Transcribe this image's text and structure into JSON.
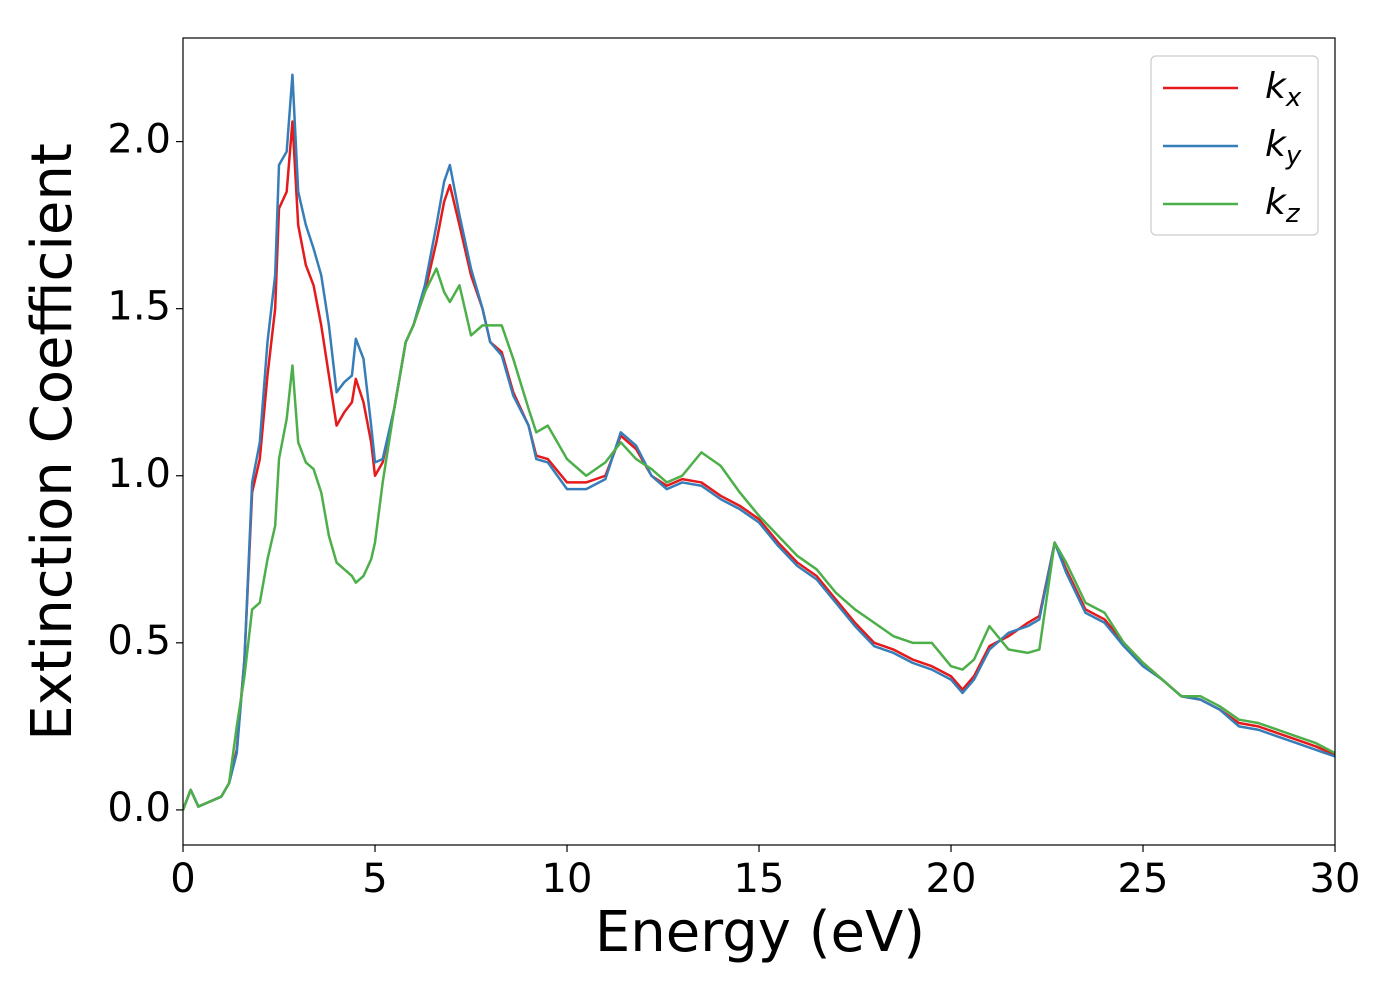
{
  "chart_data": {
    "type": "line",
    "xlabel": "Energy (eV)",
    "ylabel": "Extinction Coefficient",
    "x": [
      0,
      0.2,
      0.4,
      0.6,
      1.0,
      1.2,
      1.4,
      1.6,
      1.8,
      2.0,
      2.2,
      2.4,
      2.5,
      2.7,
      2.85,
      3.0,
      3.2,
      3.4,
      3.6,
      3.8,
      4.0,
      4.2,
      4.4,
      4.5,
      4.7,
      4.9,
      5.0,
      5.2,
      5.5,
      5.8,
      6.0,
      6.3,
      6.6,
      6.8,
      6.95,
      7.2,
      7.5,
      7.8,
      8.0,
      8.3,
      8.6,
      9.0,
      9.2,
      9.5,
      10.0,
      10.5,
      11.0,
      11.4,
      11.8,
      12.2,
      12.6,
      13.0,
      13.5,
      14.0,
      14.5,
      15.0,
      15.5,
      16.0,
      16.5,
      17.0,
      17.5,
      18.0,
      18.5,
      19.0,
      19.5,
      20.0,
      20.3,
      20.6,
      21.0,
      21.5,
      22.0,
      22.3,
      22.7,
      23.0,
      23.5,
      24.0,
      24.5,
      25.0,
      25.5,
      26.0,
      26.5,
      27.0,
      27.5,
      28.0,
      28.5,
      29.0,
      29.5,
      30
    ],
    "series": [
      {
        "name": "kx",
        "color": "#e41a1c",
        "values": [
          0,
          0.06,
          0.01,
          0.02,
          0.04,
          0.08,
          0.18,
          0.45,
          0.95,
          1.05,
          1.3,
          1.5,
          1.8,
          1.85,
          2.06,
          1.75,
          1.63,
          1.57,
          1.45,
          1.3,
          1.15,
          1.19,
          1.22,
          1.29,
          1.22,
          1.1,
          1.0,
          1.04,
          1.2,
          1.4,
          1.45,
          1.55,
          1.7,
          1.82,
          1.87,
          1.75,
          1.6,
          1.5,
          1.4,
          1.37,
          1.25,
          1.15,
          1.06,
          1.05,
          0.98,
          0.98,
          1.0,
          1.12,
          1.08,
          1.0,
          0.97,
          0.99,
          0.98,
          0.94,
          0.91,
          0.87,
          0.8,
          0.74,
          0.7,
          0.63,
          0.56,
          0.5,
          0.48,
          0.45,
          0.43,
          0.4,
          0.36,
          0.4,
          0.49,
          0.52,
          0.56,
          0.58,
          0.8,
          0.72,
          0.6,
          0.57,
          0.5,
          0.44,
          0.39,
          0.34,
          0.33,
          0.3,
          0.26,
          0.25,
          0.23,
          0.21,
          0.19,
          0.165
        ]
      },
      {
        "name": "ky",
        "color": "#377eb8",
        "values": [
          0,
          0.06,
          0.01,
          0.02,
          0.04,
          0.08,
          0.17,
          0.45,
          0.98,
          1.1,
          1.4,
          1.6,
          1.93,
          1.97,
          2.2,
          1.85,
          1.75,
          1.68,
          1.6,
          1.45,
          1.25,
          1.28,
          1.3,
          1.41,
          1.35,
          1.15,
          1.04,
          1.05,
          1.2,
          1.4,
          1.45,
          1.57,
          1.75,
          1.88,
          1.93,
          1.78,
          1.62,
          1.5,
          1.4,
          1.36,
          1.24,
          1.15,
          1.05,
          1.04,
          0.96,
          0.96,
          0.99,
          1.13,
          1.09,
          1.0,
          0.96,
          0.98,
          0.97,
          0.93,
          0.9,
          0.86,
          0.79,
          0.73,
          0.69,
          0.62,
          0.55,
          0.49,
          0.47,
          0.44,
          0.42,
          0.39,
          0.35,
          0.39,
          0.48,
          0.53,
          0.55,
          0.57,
          0.8,
          0.71,
          0.59,
          0.56,
          0.49,
          0.43,
          0.39,
          0.34,
          0.33,
          0.3,
          0.25,
          0.24,
          0.22,
          0.2,
          0.18,
          0.16
        ]
      },
      {
        "name": "kz",
        "color": "#4daf4a",
        "values": [
          0,
          0.06,
          0.01,
          0.02,
          0.04,
          0.08,
          0.25,
          0.4,
          0.6,
          0.62,
          0.75,
          0.85,
          1.05,
          1.17,
          1.33,
          1.1,
          1.04,
          1.02,
          0.95,
          0.82,
          0.74,
          0.72,
          0.7,
          0.68,
          0.7,
          0.75,
          0.8,
          0.98,
          1.2,
          1.4,
          1.45,
          1.55,
          1.62,
          1.55,
          1.52,
          1.57,
          1.42,
          1.45,
          1.45,
          1.45,
          1.35,
          1.2,
          1.13,
          1.15,
          1.05,
          1.0,
          1.04,
          1.1,
          1.05,
          1.02,
          0.98,
          1.0,
          1.07,
          1.03,
          0.95,
          0.88,
          0.82,
          0.76,
          0.72,
          0.65,
          0.6,
          0.56,
          0.52,
          0.5,
          0.5,
          0.43,
          0.42,
          0.45,
          0.55,
          0.48,
          0.47,
          0.48,
          0.8,
          0.74,
          0.62,
          0.59,
          0.5,
          0.44,
          0.39,
          0.34,
          0.34,
          0.31,
          0.27,
          0.26,
          0.24,
          0.22,
          0.2,
          0.17
        ]
      }
    ],
    "xlim": [
      0,
      30
    ],
    "xticks": [
      0,
      5,
      10,
      15,
      20,
      25,
      30
    ],
    "ylim": [
      -0.105,
      2.31
    ],
    "yticks": [
      {
        "value": 0,
        "label": "0.0"
      },
      {
        "value": 0.5,
        "label": "0.5"
      },
      {
        "value": 1,
        "label": "1.0"
      },
      {
        "value": 1.5,
        "label": "1.5"
      },
      {
        "value": 2,
        "label": "2.0"
      }
    ],
    "legend": "upper right",
    "grid": false
  }
}
